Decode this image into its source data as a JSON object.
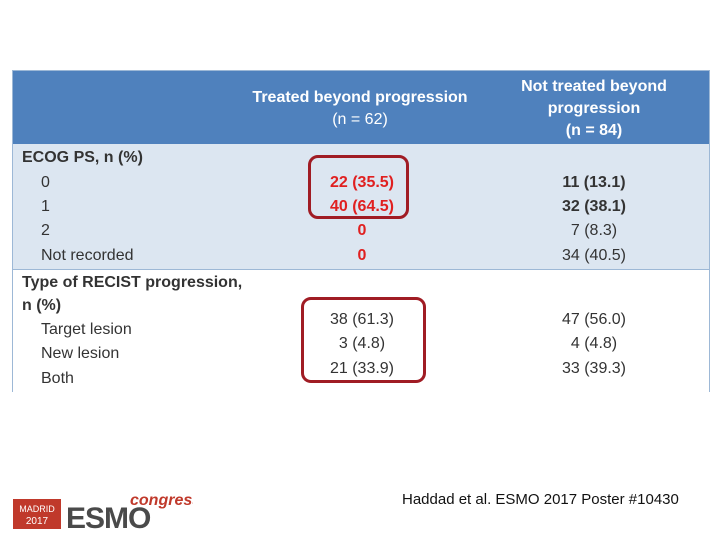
{
  "table": {
    "header": {
      "col2_line1": "Treated beyond progression",
      "col2_line2": "(n = 62)",
      "col3_line1": "Not treated beyond",
      "col3_line2": "progression",
      "col3_line3": "(n = 84)"
    },
    "ecog": {
      "title": "ECOG PS, n (%)",
      "rows": [
        {
          "label": "0",
          "treated": "22 (35.5)",
          "not_treated": "11 (13.1)"
        },
        {
          "label": "1",
          "treated": "40 (64.5)",
          "not_treated": "32 (38.1)"
        },
        {
          "label": "2",
          "treated": "0",
          "not_treated": "7 (8.3)"
        },
        {
          "label": "Not recorded",
          "treated": "0",
          "not_treated": "34 (40.5)"
        }
      ]
    },
    "recist": {
      "title_line1": "Type of RECIST progression,",
      "title_line2": "n (%)",
      "rows": [
        {
          "label": "Target lesion",
          "treated": "38 (61.3)",
          "not_treated": "47 (56.0)"
        },
        {
          "label": "New lesion",
          "treated": "3 (4.8)",
          "not_treated": "4 (4.8)"
        },
        {
          "label": "Both",
          "treated": "21 (33.9)",
          "not_treated": "33 (39.3)"
        }
      ]
    }
  },
  "footer": {
    "citation": "Haddad et al. ESMO 2017 Poster #10430"
  },
  "logo": {
    "city": "MADRID",
    "year": "2017",
    "brand": "ESMO",
    "suffix": "congress"
  },
  "colors": {
    "header": "#4f81bd",
    "shade": "#dce6f1",
    "highlight_red": "#e02020",
    "box": "#a01c24"
  }
}
